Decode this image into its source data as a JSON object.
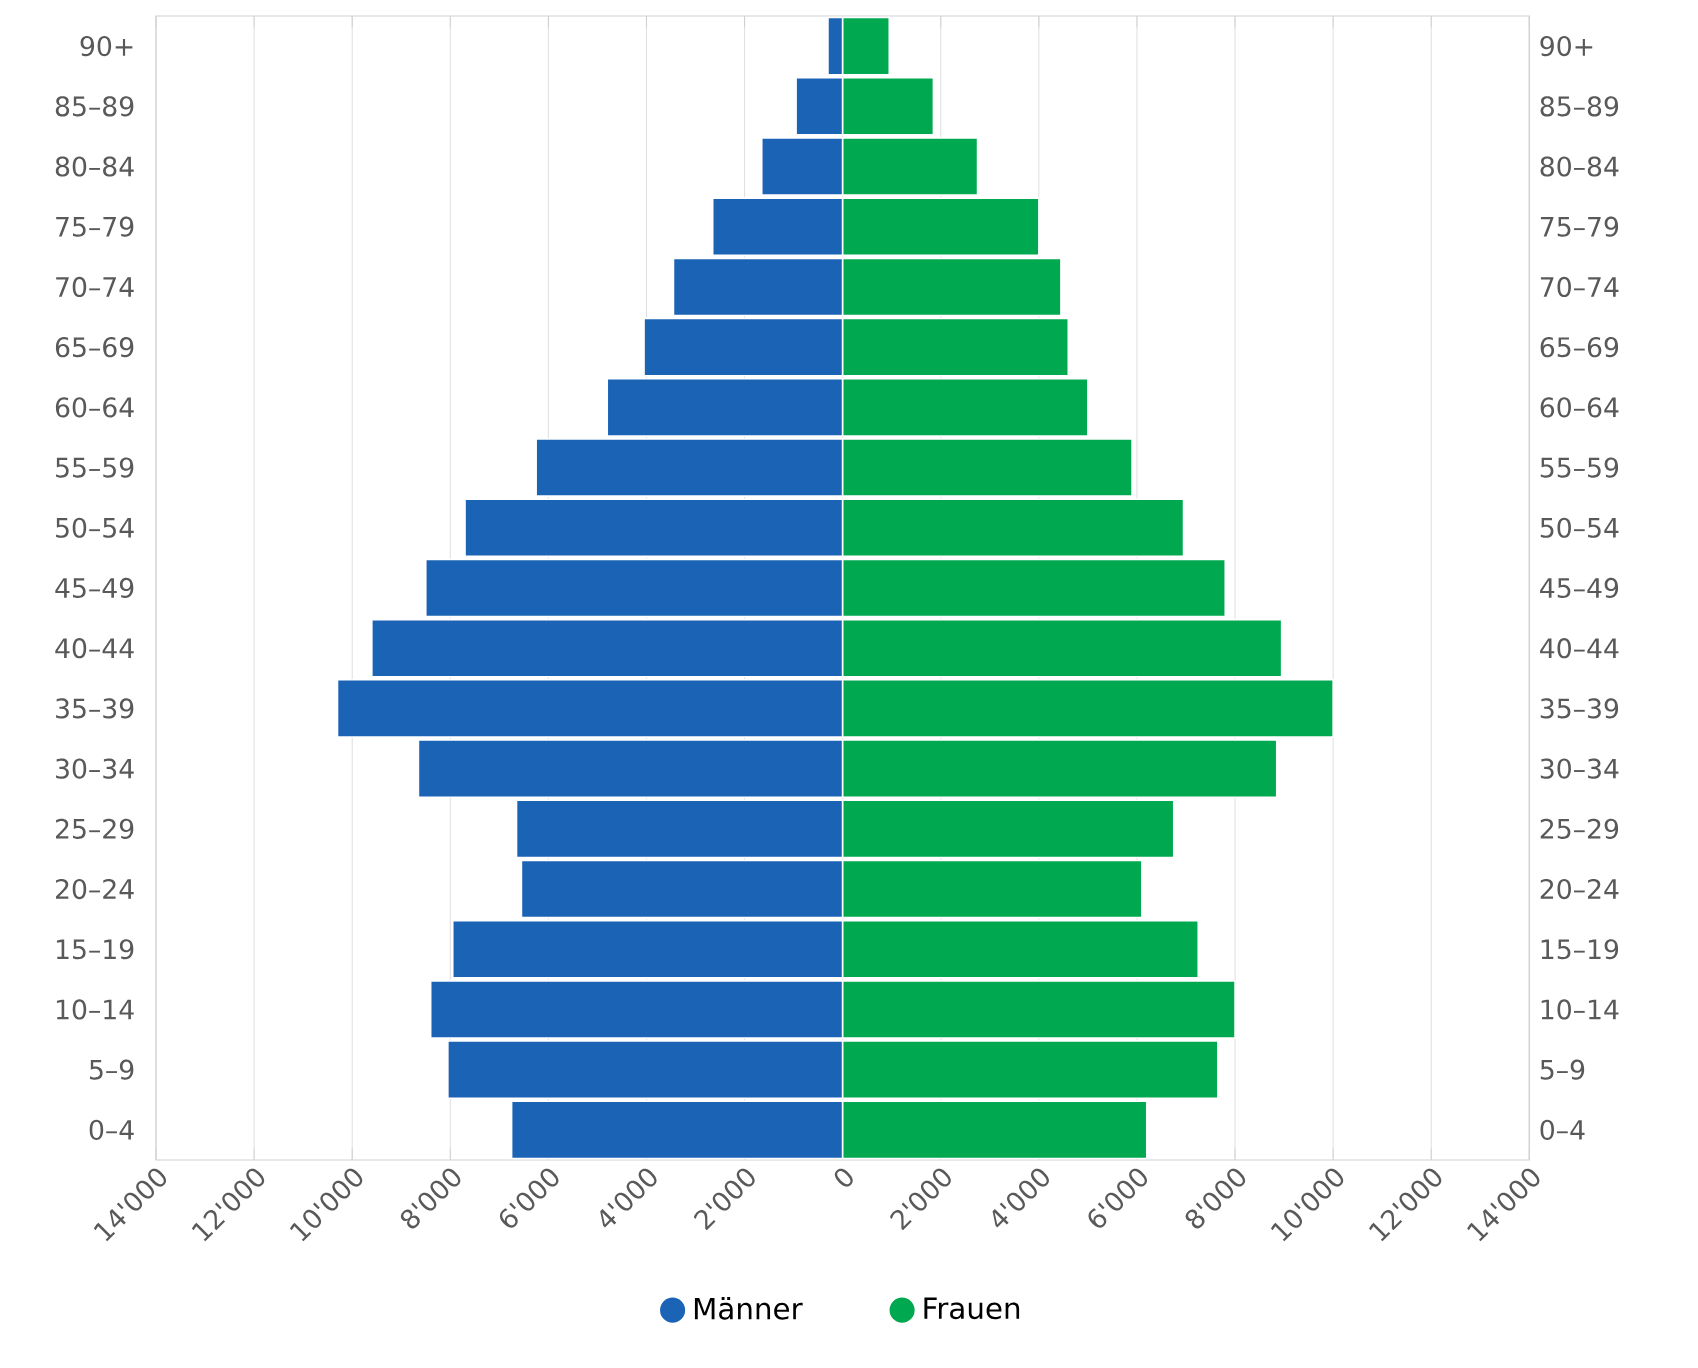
{
  "chart_data": {
    "type": "bar",
    "orientation": "horizontal",
    "categories": [
      "90+",
      "85–89",
      "80–84",
      "75–79",
      "70–74",
      "65–69",
      "60–64",
      "55–59",
      "50–54",
      "45–49",
      "40–44",
      "35–39",
      "30–34",
      "25–29",
      "20–24",
      "15–19",
      "10–14",
      "5–9",
      "0–4"
    ],
    "series": [
      {
        "name": "Männer",
        "color": "#1a63b5",
        "values": [
          -300,
          -950,
          -1650,
          -2650,
          -3450,
          -4050,
          -4800,
          -6250,
          -7700,
          -8500,
          -9600,
          -10300,
          -8650,
          -6650,
          -6550,
          -7950,
          -8400,
          -8050,
          -6750
        ]
      },
      {
        "name": "Frauen",
        "color": "#00a84f",
        "values": [
          950,
          1850,
          2750,
          4000,
          4450,
          4600,
          5000,
          5900,
          6950,
          7800,
          8950,
          10000,
          8850,
          6750,
          6100,
          7250,
          8000,
          7650,
          6200
        ]
      }
    ],
    "xlim": [
      -14000,
      14000
    ],
    "xticks": [
      {
        "value": -14000,
        "label": "14'000"
      },
      {
        "value": -12000,
        "label": "12'000"
      },
      {
        "value": -10000,
        "label": "10'000"
      },
      {
        "value": -8000,
        "label": "8'000"
      },
      {
        "value": -6000,
        "label": "6'000"
      },
      {
        "value": -4000,
        "label": "4'000"
      },
      {
        "value": -2000,
        "label": "2'000"
      },
      0,
      {
        "value": 2000,
        "label": "2'000"
      },
      {
        "value": 4000,
        "label": "4'000"
      },
      {
        "value": 6000,
        "label": "6'000"
      },
      {
        "value": 8000,
        "label": "8'000"
      },
      {
        "value": 10000,
        "label": "10'000"
      },
      {
        "value": 12000,
        "label": "12'000"
      },
      {
        "value": 14000,
        "label": "14'000"
      }
    ],
    "stacked": true,
    "grid": "x",
    "legend": "bottom"
  }
}
